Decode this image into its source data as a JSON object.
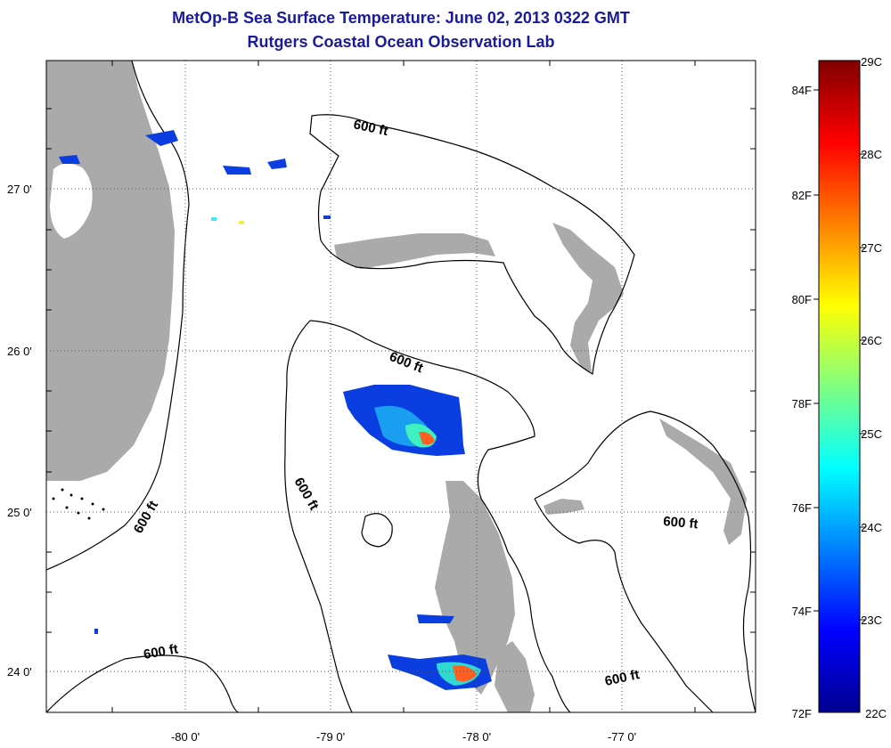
{
  "title": "MetOp-B Sea Surface Temperature:  June 02, 2013 0322 GMT",
  "subtitle": "Rutgers Coastal Ocean Observation Lab",
  "x_ticks": [
    "-80 0'",
    "-79 0'",
    "-78 0'",
    "-77 0'"
  ],
  "y_ticks": [
    "27 0'",
    "26 0'",
    "25 0'",
    "24 0'"
  ],
  "isobath_labels": [
    "600 ft",
    "600 ft",
    "600 ft",
    "600 ft",
    "600 ft",
    "600 ft"
  ],
  "colorbar": {
    "range_c": [
      22,
      29
    ],
    "range_f": [
      72,
      84
    ],
    "celsius_labels": [
      "29C",
      "28C",
      "27C",
      "26C",
      "25C",
      "24C",
      "23C",
      "22C"
    ],
    "fahrenheit_labels": [
      "84F",
      "82F",
      "80F",
      "78F",
      "76F",
      "74F",
      "72F"
    ],
    "colormap": "jet"
  },
  "colors": {
    "land": "#aaaaaa",
    "title": "#1a1a9c"
  }
}
